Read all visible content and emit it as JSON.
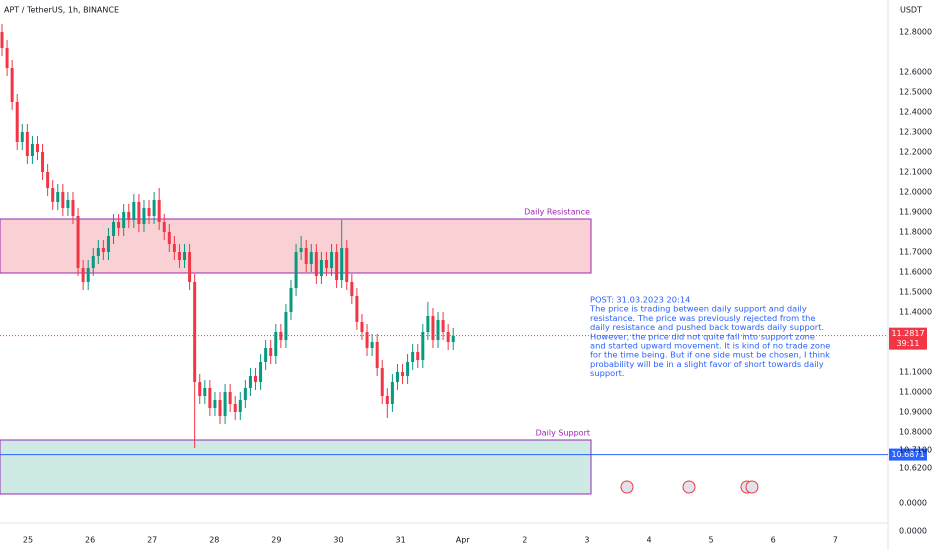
{
  "chart_data": {
    "type": "candlestick",
    "title": "APT / TetherUS, 1h, BINANCE",
    "currency": "USDT",
    "up_color": "#089981",
    "down_color": "#f23645",
    "ylim": [
      10.26,
      12.96
    ],
    "yticks": [
      {
        "value": 12.8,
        "label": "12.8000"
      },
      {
        "value": 12.6,
        "label": "12.6000"
      },
      {
        "value": 12.5,
        "label": "12.5000"
      },
      {
        "value": 12.4,
        "label": "12.4000"
      },
      {
        "value": 12.3,
        "label": "12.3000"
      },
      {
        "value": 12.2,
        "label": "12.2000"
      },
      {
        "value": 12.1,
        "label": "12.1000"
      },
      {
        "value": 12.0,
        "label": "12.0000"
      },
      {
        "value": 11.9,
        "label": "11.9000"
      },
      {
        "value": 11.8,
        "label": "11.8000"
      },
      {
        "value": 11.7,
        "label": "11.7000"
      },
      {
        "value": 11.6,
        "label": "11.6000"
      },
      {
        "value": 11.5,
        "label": "11.5000"
      },
      {
        "value": 11.4,
        "label": "11.4000"
      },
      {
        "value": 11.1,
        "label": "11.1000"
      },
      {
        "value": 11.0,
        "label": "11.0000"
      },
      {
        "value": 10.9,
        "label": "10.9000"
      },
      {
        "value": 10.8,
        "label": "10.8000"
      },
      {
        "value": 10.71,
        "label": "10.7100"
      },
      {
        "value": 10.62,
        "label": "10.6200"
      }
    ],
    "volume_axis_labels": [
      "0.0000",
      "0.0000"
    ],
    "x_labels": [
      "25",
      "26",
      "27",
      "28",
      "29",
      "30",
      "31",
      "Apr",
      "2",
      "3",
      "4",
      "5",
      "6",
      "7"
    ],
    "open": [
      12.8,
      12.72,
      12.62,
      12.45,
      12.25,
      12.3,
      12.18,
      12.24,
      12.2,
      12.1,
      12.02,
      11.95,
      12.0,
      11.92,
      11.96,
      11.88,
      11.62,
      11.55,
      11.62,
      11.68,
      11.72,
      11.7,
      11.78,
      11.85,
      11.82,
      11.9,
      11.86,
      11.95,
      11.84,
      11.92,
      11.88,
      11.96,
      11.85,
      11.8,
      11.74,
      11.7,
      11.66,
      11.7,
      11.55,
      11.05,
      10.98,
      11.02,
      10.92,
      10.96,
      10.88,
      11.0,
      10.94,
      10.9,
      10.96,
      11.02,
      11.08,
      11.05,
      11.15,
      11.22,
      11.18,
      11.3,
      11.26,
      11.4,
      11.52,
      11.7,
      11.72,
      11.64,
      11.7,
      11.58,
      11.66,
      11.62,
      11.7,
      11.56,
      11.72,
      11.55,
      11.48,
      11.35,
      11.3,
      11.22,
      11.25,
      11.12,
      10.98,
      10.94,
      11.05,
      11.1,
      11.08,
      11.15,
      11.2,
      11.16,
      11.3,
      11.38,
      11.26,
      11.36,
      11.3,
      11.25
    ],
    "high": [
      12.84,
      12.76,
      12.66,
      12.49,
      12.34,
      12.34,
      12.28,
      12.28,
      12.24,
      12.14,
      12.06,
      12.04,
      12.04,
      12.0,
      12.0,
      11.92,
      11.66,
      11.66,
      11.72,
      11.76,
      11.76,
      11.82,
      11.89,
      11.89,
      11.94,
      11.94,
      11.99,
      11.99,
      11.96,
      11.96,
      12.0,
      12.02,
      11.89,
      11.84,
      11.78,
      11.74,
      11.74,
      11.74,
      11.59,
      11.09,
      11.06,
      11.06,
      11.0,
      11.0,
      11.04,
      11.04,
      10.98,
      11.0,
      11.06,
      11.12,
      11.12,
      11.19,
      11.26,
      11.26,
      11.34,
      11.34,
      11.44,
      11.56,
      11.74,
      11.78,
      11.76,
      11.74,
      11.74,
      11.7,
      11.7,
      11.74,
      11.74,
      11.86,
      11.76,
      11.59,
      11.52,
      11.39,
      11.34,
      11.29,
      11.29,
      11.16,
      11.02,
      11.09,
      11.14,
      11.14,
      11.19,
      11.24,
      11.24,
      11.34,
      11.45,
      11.42,
      11.4,
      11.4,
      11.34,
      11.32
    ],
    "low": [
      12.68,
      12.58,
      12.41,
      12.21,
      12.21,
      12.14,
      12.14,
      12.16,
      12.06,
      11.98,
      11.91,
      11.91,
      11.88,
      11.88,
      11.84,
      11.58,
      11.51,
      11.51,
      11.58,
      11.64,
      11.66,
      11.66,
      11.74,
      11.78,
      11.78,
      11.82,
      11.82,
      11.8,
      11.8,
      11.84,
      11.84,
      11.81,
      11.76,
      11.7,
      11.66,
      11.62,
      11.62,
      11.51,
      10.72,
      10.94,
      10.94,
      10.88,
      10.88,
      10.84,
      10.84,
      10.9,
      10.86,
      10.86,
      10.92,
      10.98,
      11.01,
      11.01,
      11.11,
      11.14,
      11.14,
      11.22,
      11.22,
      11.36,
      11.48,
      11.66,
      11.6,
      11.6,
      11.54,
      11.54,
      11.58,
      11.58,
      11.52,
      11.52,
      11.51,
      11.44,
      11.31,
      11.26,
      11.18,
      11.18,
      11.08,
      10.94,
      10.87,
      10.9,
      11.01,
      11.04,
      11.04,
      11.11,
      11.12,
      11.12,
      11.26,
      11.22,
      11.22,
      11.26,
      11.21,
      11.21
    ],
    "close": [
      12.72,
      12.62,
      12.45,
      12.25,
      12.3,
      12.18,
      12.24,
      12.2,
      12.1,
      12.02,
      11.95,
      12.0,
      11.92,
      11.96,
      11.88,
      11.62,
      11.55,
      11.62,
      11.68,
      11.72,
      11.7,
      11.78,
      11.85,
      11.82,
      11.9,
      11.86,
      11.95,
      11.84,
      11.92,
      11.88,
      11.96,
      11.85,
      11.8,
      11.74,
      11.7,
      11.66,
      11.7,
      11.55,
      11.05,
      10.98,
      11.02,
      10.92,
      10.96,
      10.88,
      11.0,
      10.94,
      10.9,
      10.96,
      11.02,
      11.08,
      11.05,
      11.15,
      11.22,
      11.18,
      11.3,
      11.26,
      11.4,
      11.52,
      11.7,
      11.72,
      11.64,
      11.7,
      11.58,
      11.66,
      11.62,
      11.7,
      11.56,
      11.72,
      11.55,
      11.48,
      11.35,
      11.3,
      11.22,
      11.25,
      11.12,
      10.98,
      10.94,
      11.05,
      11.1,
      11.08,
      11.15,
      11.2,
      11.16,
      11.3,
      11.38,
      11.26,
      11.36,
      11.3,
      11.25,
      11.2817
    ],
    "zones": [
      {
        "name": "Daily Resistance",
        "range": [
          11.595,
          11.865
        ],
        "fill": "#f9d0d4",
        "stroke": "#9c27b0"
      },
      {
        "name": "Daily Support",
        "range": [
          10.49,
          10.76
        ],
        "fill": "#cdebe4",
        "stroke": "#9c27b0"
      }
    ],
    "current_price": {
      "value": 11.2817,
      "label": "11.2817",
      "countdown": "39:11",
      "color": "#f23645"
    },
    "level_line": {
      "value": 10.6871,
      "label": "10.6871",
      "color": "#2962ff"
    },
    "post": [
      "POST: 31.03.2023 20:14",
      "The price is trading between daily support and daily",
      "resistance. The price was previously rejected from the",
      "daily resistance and pushed back towards daily support.",
      "However, the price did not quite fall into support zone",
      "and started upward movement. It is kind of no trade zone",
      "for the time being. But if one side must be chosen, I think",
      "probability will be in a slight favor of short towards daily",
      "support."
    ]
  }
}
